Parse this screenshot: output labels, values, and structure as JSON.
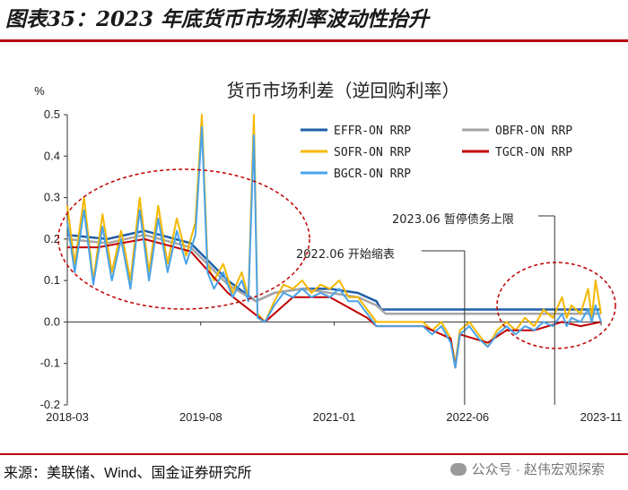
{
  "figure": {
    "title": "图表35：2023 年底货币市场利率波动性抬升",
    "source": "来源：美联储、Wind、国金证券研究所",
    "watermark": "公众号 · 赵伟宏观探索"
  },
  "chart_data": {
    "type": "line",
    "title": "货币市场利差（逆回购利率）",
    "ylabel": "%",
    "ylim": [
      -0.2,
      0.5
    ],
    "yticks": [
      "0.5",
      "0.4",
      "0.3",
      "0.2",
      "0.1",
      "0.0",
      "-0.1",
      "-0.2"
    ],
    "xticks": [
      "2018-03",
      "2019-08",
      "2021-01",
      "2022-06",
      "2023-11"
    ],
    "xrange": [
      2018.17,
      2023.92
    ],
    "series": [
      {
        "name": "EFFR-ON RRP",
        "color": "#1f5fa8",
        "points": [
          [
            2018.17,
            0.21
          ],
          [
            2018.6,
            0.2
          ],
          [
            2019.0,
            0.22
          ],
          [
            2019.5,
            0.19
          ],
          [
            2019.9,
            0.1
          ],
          [
            2020.2,
            0.05
          ],
          [
            2020.4,
            0.07
          ],
          [
            2020.7,
            0.08
          ],
          [
            2021.0,
            0.08
          ],
          [
            2021.3,
            0.07
          ],
          [
            2021.5,
            0.05
          ],
          [
            2021.55,
            0.03
          ],
          [
            2022.0,
            0.03
          ],
          [
            2022.5,
            0.03
          ],
          [
            2023.0,
            0.03
          ],
          [
            2023.5,
            0.03
          ],
          [
            2023.92,
            0.03
          ]
        ]
      },
      {
        "name": "OBFR-ON RRP",
        "color": "#a6a6a6",
        "points": [
          [
            2018.17,
            0.2
          ],
          [
            2018.6,
            0.19
          ],
          [
            2019.0,
            0.21
          ],
          [
            2019.5,
            0.18
          ],
          [
            2019.9,
            0.09
          ],
          [
            2020.2,
            0.05
          ],
          [
            2020.4,
            0.07
          ],
          [
            2020.7,
            0.08
          ],
          [
            2021.0,
            0.07
          ],
          [
            2021.3,
            0.06
          ],
          [
            2021.5,
            0.04
          ],
          [
            2021.6,
            0.02
          ],
          [
            2022.0,
            0.02
          ],
          [
            2022.5,
            0.02
          ],
          [
            2023.0,
            0.02
          ],
          [
            2023.5,
            0.02
          ],
          [
            2023.92,
            0.02
          ]
        ]
      },
      {
        "name": "SOFR-ON RRP",
        "color": "#f5b800",
        "points": [
          [
            2018.17,
            0.28
          ],
          [
            2018.25,
            0.14
          ],
          [
            2018.35,
            0.3
          ],
          [
            2018.45,
            0.1
          ],
          [
            2018.55,
            0.26
          ],
          [
            2018.65,
            0.12
          ],
          [
            2018.75,
            0.22
          ],
          [
            2018.85,
            0.1
          ],
          [
            2018.95,
            0.3
          ],
          [
            2019.05,
            0.12
          ],
          [
            2019.15,
            0.28
          ],
          [
            2019.25,
            0.14
          ],
          [
            2019.35,
            0.25
          ],
          [
            2019.45,
            0.16
          ],
          [
            2019.55,
            0.24
          ],
          [
            2019.62,
            0.5
          ],
          [
            2019.68,
            0.14
          ],
          [
            2019.75,
            0.1
          ],
          [
            2019.85,
            0.14
          ],
          [
            2019.95,
            0.07
          ],
          [
            2020.05,
            0.12
          ],
          [
            2020.12,
            0.06
          ],
          [
            2020.18,
            0.5
          ],
          [
            2020.22,
            0.02
          ],
          [
            2020.3,
            0.0
          ],
          [
            2020.4,
            0.05
          ],
          [
            2020.5,
            0.09
          ],
          [
            2020.6,
            0.08
          ],
          [
            2020.7,
            0.1
          ],
          [
            2020.8,
            0.07
          ],
          [
            2020.9,
            0.09
          ],
          [
            2021.0,
            0.08
          ],
          [
            2021.1,
            0.1
          ],
          [
            2021.2,
            0.06
          ],
          [
            2021.3,
            0.06
          ],
          [
            2021.4,
            0.03
          ],
          [
            2021.5,
            0.0
          ],
          [
            2022.0,
            0.0
          ],
          [
            2022.1,
            -0.02
          ],
          [
            2022.2,
            0.0
          ],
          [
            2022.3,
            -0.04
          ],
          [
            2022.35,
            -0.1
          ],
          [
            2022.4,
            -0.02
          ],
          [
            2022.5,
            0.0
          ],
          [
            2022.6,
            -0.03
          ],
          [
            2022.7,
            -0.06
          ],
          [
            2022.8,
            -0.02
          ],
          [
            2022.9,
            0.0
          ],
          [
            2023.0,
            -0.02
          ],
          [
            2023.1,
            0.01
          ],
          [
            2023.2,
            -0.01
          ],
          [
            2023.3,
            0.03
          ],
          [
            2023.4,
            0.01
          ],
          [
            2023.5,
            0.06
          ],
          [
            2023.55,
            0.01
          ],
          [
            2023.6,
            0.04
          ],
          [
            2023.7,
            0.02
          ],
          [
            2023.78,
            0.08
          ],
          [
            2023.82,
            0.01
          ],
          [
            2023.86,
            0.1
          ],
          [
            2023.92,
            0.02
          ]
        ]
      },
      {
        "name": "TGCR-ON RRP",
        "color": "#c00000",
        "points": [
          [
            2018.17,
            0.18
          ],
          [
            2018.5,
            0.18
          ],
          [
            2019.0,
            0.2
          ],
          [
            2019.5,
            0.17
          ],
          [
            2019.9,
            0.07
          ],
          [
            2020.3,
            0.0
          ],
          [
            2020.6,
            0.06
          ],
          [
            2021.0,
            0.06
          ],
          [
            2021.4,
            0.01
          ],
          [
            2021.5,
            -0.01
          ],
          [
            2022.0,
            -0.01
          ],
          [
            2022.3,
            -0.04
          ],
          [
            2022.35,
            -0.11
          ],
          [
            2022.4,
            -0.03
          ],
          [
            2022.7,
            -0.05
          ],
          [
            2022.9,
            -0.02
          ],
          [
            2023.2,
            -0.02
          ],
          [
            2023.5,
            0.0
          ],
          [
            2023.7,
            -0.01
          ],
          [
            2023.92,
            0.0
          ]
        ]
      },
      {
        "name": "BGCR-ON RRP",
        "color": "#4aa3e8",
        "points": [
          [
            2018.17,
            0.24
          ],
          [
            2018.25,
            0.12
          ],
          [
            2018.35,
            0.27
          ],
          [
            2018.45,
            0.09
          ],
          [
            2018.55,
            0.23
          ],
          [
            2018.65,
            0.1
          ],
          [
            2018.75,
            0.2
          ],
          [
            2018.85,
            0.08
          ],
          [
            2018.95,
            0.27
          ],
          [
            2019.05,
            0.1
          ],
          [
            2019.15,
            0.25
          ],
          [
            2019.25,
            0.12
          ],
          [
            2019.35,
            0.22
          ],
          [
            2019.45,
            0.14
          ],
          [
            2019.55,
            0.21
          ],
          [
            2019.62,
            0.47
          ],
          [
            2019.68,
            0.12
          ],
          [
            2019.75,
            0.08
          ],
          [
            2019.85,
            0.12
          ],
          [
            2019.95,
            0.06
          ],
          [
            2020.05,
            0.1
          ],
          [
            2020.12,
            0.05
          ],
          [
            2020.18,
            0.45
          ],
          [
            2020.22,
            0.01
          ],
          [
            2020.3,
            0.0
          ],
          [
            2020.4,
            0.04
          ],
          [
            2020.5,
            0.07
          ],
          [
            2020.6,
            0.06
          ],
          [
            2020.7,
            0.08
          ],
          [
            2020.8,
            0.06
          ],
          [
            2020.9,
            0.07
          ],
          [
            2021.0,
            0.06
          ],
          [
            2021.1,
            0.08
          ],
          [
            2021.2,
            0.05
          ],
          [
            2021.3,
            0.05
          ],
          [
            2021.4,
            0.02
          ],
          [
            2021.5,
            -0.01
          ],
          [
            2022.0,
            -0.01
          ],
          [
            2022.1,
            -0.03
          ],
          [
            2022.2,
            -0.01
          ],
          [
            2022.3,
            -0.05
          ],
          [
            2022.35,
            -0.11
          ],
          [
            2022.4,
            -0.03
          ],
          [
            2022.5,
            -0.01
          ],
          [
            2022.6,
            -0.04
          ],
          [
            2022.7,
            -0.06
          ],
          [
            2022.8,
            -0.03
          ],
          [
            2022.9,
            -0.01
          ],
          [
            2023.0,
            -0.03
          ],
          [
            2023.1,
            -0.01
          ],
          [
            2023.2,
            -0.02
          ],
          [
            2023.3,
            0.0
          ],
          [
            2023.4,
            -0.01
          ],
          [
            2023.5,
            0.02
          ],
          [
            2023.55,
            -0.01
          ],
          [
            2023.6,
            0.01
          ],
          [
            2023.7,
            0.0
          ],
          [
            2023.78,
            0.03
          ],
          [
            2023.82,
            0.0
          ],
          [
            2023.86,
            0.04
          ],
          [
            2023.92,
            0.0
          ]
        ]
      }
    ],
    "annotations": [
      {
        "text": "2022.06  开始缩表",
        "x": 2022.45
      },
      {
        "text": "2023.06 暂停债务上限",
        "x": 2023.42
      }
    ]
  }
}
